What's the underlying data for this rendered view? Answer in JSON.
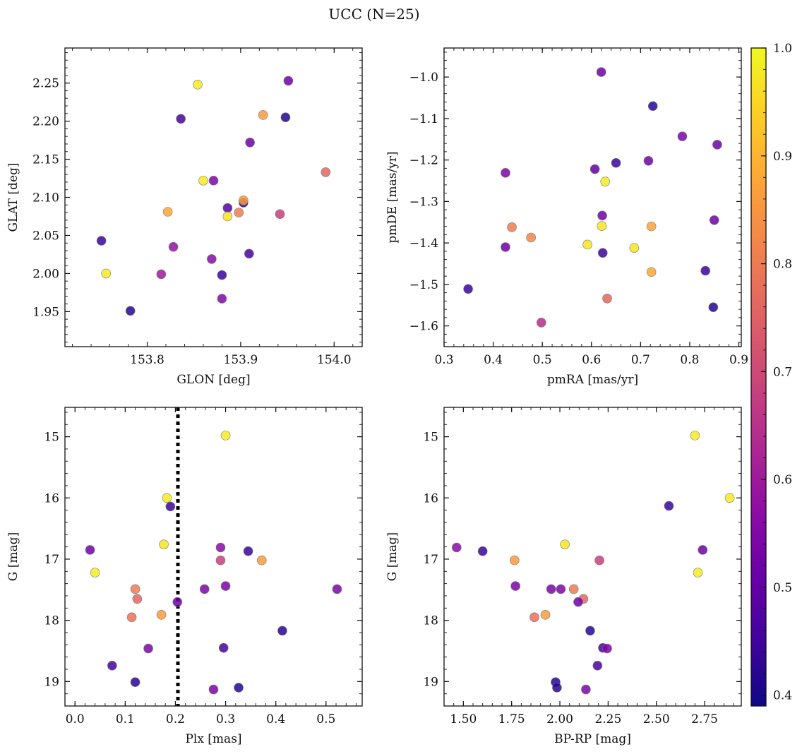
{
  "figure": {
    "title": "UCC (N=25)"
  },
  "chart_data": [
    {
      "type": "scatter",
      "xlabel": "GLON [deg]",
      "ylabel": "GLAT [deg]",
      "xlim": [
        153.712,
        154.03
      ],
      "ylim": [
        1.904,
        2.296
      ],
      "xticks": [
        153.8,
        153.9,
        154.0
      ],
      "xticklabels": [
        "153.8",
        "153.9",
        "154.0"
      ],
      "xminor": 0.02,
      "yticks": [
        1.95,
        2.0,
        2.05,
        2.1,
        2.15,
        2.2,
        2.25
      ],
      "yticklabels": [
        "1.95",
        "2.00",
        "2.05",
        "2.10",
        "2.15",
        "2.20",
        "2.25"
      ],
      "yminor": 0.01,
      "points": [
        {
          "x": 153.854,
          "y": 2.248,
          "c": 0.98
        },
        {
          "x": 153.951,
          "y": 2.253,
          "c": 0.52
        },
        {
          "x": 153.836,
          "y": 2.203,
          "c": 0.46
        },
        {
          "x": 153.924,
          "y": 2.208,
          "c": 0.86
        },
        {
          "x": 153.948,
          "y": 2.205,
          "c": 0.42
        },
        {
          "x": 153.91,
          "y": 2.172,
          "c": 0.52
        },
        {
          "x": 153.991,
          "y": 2.133,
          "c": 0.76
        },
        {
          "x": 153.86,
          "y": 2.122,
          "c": 0.98
        },
        {
          "x": 153.871,
          "y": 2.122,
          "c": 0.54
        },
        {
          "x": 153.822,
          "y": 2.081,
          "c": 0.88
        },
        {
          "x": 153.886,
          "y": 2.086,
          "c": 0.48
        },
        {
          "x": 153.903,
          "y": 2.093,
          "c": 0.42
        },
        {
          "x": 153.903,
          "y": 2.096,
          "c": 0.86
        },
        {
          "x": 153.898,
          "y": 2.08,
          "c": 0.8
        },
        {
          "x": 153.886,
          "y": 2.075,
          "c": 0.97
        },
        {
          "x": 153.942,
          "y": 2.078,
          "c": 0.68
        },
        {
          "x": 153.751,
          "y": 2.043,
          "c": 0.44
        },
        {
          "x": 153.828,
          "y": 2.035,
          "c": 0.58
        },
        {
          "x": 153.869,
          "y": 2.019,
          "c": 0.56
        },
        {
          "x": 153.909,
          "y": 2.026,
          "c": 0.46
        },
        {
          "x": 153.756,
          "y": 2.0,
          "c": 0.98
        },
        {
          "x": 153.815,
          "y": 1.999,
          "c": 0.6
        },
        {
          "x": 153.88,
          "y": 1.998,
          "c": 0.44
        },
        {
          "x": 153.88,
          "y": 1.967,
          "c": 0.55
        },
        {
          "x": 153.782,
          "y": 1.951,
          "c": 0.42
        }
      ]
    },
    {
      "type": "scatter",
      "xlabel": "pmRA [mas/yr]",
      "ylabel": "pmDE [mas/yr]",
      "xlim": [
        0.3,
        0.905
      ],
      "ylim": [
        -1.65,
        -0.93
      ],
      "xticks": [
        0.3,
        0.4,
        0.5,
        0.6,
        0.7,
        0.8,
        0.9
      ],
      "xticklabels": [
        "0.3",
        "0.4",
        "0.5",
        "0.6",
        "0.7",
        "0.8",
        "0.9"
      ],
      "xminor": 0.02,
      "yticks": [
        -1.6,
        -1.5,
        -1.4,
        -1.3,
        -1.2,
        -1.1,
        -1.0
      ],
      "yticklabels": [
        "−1.6",
        "−1.5",
        "−1.4",
        "−1.3",
        "−1.2",
        "−1.1",
        "−1.0"
      ],
      "yminor": 0.02,
      "points": [
        {
          "x": 0.62,
          "y": -0.988,
          "c": 0.52
        },
        {
          "x": 0.725,
          "y": -1.07,
          "c": 0.42
        },
        {
          "x": 0.785,
          "y": -1.143,
          "c": 0.54
        },
        {
          "x": 0.856,
          "y": -1.163,
          "c": 0.52
        },
        {
          "x": 0.716,
          "y": -1.202,
          "c": 0.52
        },
        {
          "x": 0.65,
          "y": -1.207,
          "c": 0.44
        },
        {
          "x": 0.607,
          "y": -1.222,
          "c": 0.5
        },
        {
          "x": 0.425,
          "y": -1.231,
          "c": 0.54
        },
        {
          "x": 0.628,
          "y": -1.252,
          "c": 0.98
        },
        {
          "x": 0.622,
          "y": -1.334,
          "c": 0.52
        },
        {
          "x": 0.85,
          "y": -1.345,
          "c": 0.52
        },
        {
          "x": 0.438,
          "y": -1.362,
          "c": 0.8
        },
        {
          "x": 0.621,
          "y": -1.359,
          "c": 0.97
        },
        {
          "x": 0.722,
          "y": -1.36,
          "c": 0.87
        },
        {
          "x": 0.477,
          "y": -1.387,
          "c": 0.82
        },
        {
          "x": 0.425,
          "y": -1.41,
          "c": 0.52
        },
        {
          "x": 0.592,
          "y": -1.404,
          "c": 0.97
        },
        {
          "x": 0.687,
          "y": -1.412,
          "c": 0.97
        },
        {
          "x": 0.623,
          "y": -1.424,
          "c": 0.44
        },
        {
          "x": 0.722,
          "y": -1.47,
          "c": 0.88
        },
        {
          "x": 0.832,
          "y": -1.467,
          "c": 0.44
        },
        {
          "x": 0.349,
          "y": -1.511,
          "c": 0.44
        },
        {
          "x": 0.632,
          "y": -1.534,
          "c": 0.76
        },
        {
          "x": 0.848,
          "y": -1.555,
          "c": 0.42
        },
        {
          "x": 0.498,
          "y": -1.592,
          "c": 0.64
        }
      ]
    },
    {
      "type": "scatter",
      "xlabel": "Plx [mas]",
      "ylabel": "G [mag]",
      "xlim": [
        -0.02,
        0.572
      ],
      "ylim": [
        19.4,
        14.52
      ],
      "inverted_y": true,
      "xticks": [
        0.0,
        0.1,
        0.2,
        0.3,
        0.4,
        0.5
      ],
      "xticklabels": [
        "0.0",
        "0.1",
        "0.2",
        "0.3",
        "0.4",
        "0.5"
      ],
      "xminor": 0.02,
      "yticks": [
        15,
        16,
        17,
        18,
        19
      ],
      "yticklabels": [
        "15",
        "16",
        "17",
        "18",
        "19"
      ],
      "yminor": 0.2,
      "vline": 0.205,
      "points": [
        {
          "x": 0.3,
          "y": 14.98,
          "c": 0.98
        },
        {
          "x": 0.183,
          "y": 16.0,
          "c": 0.98
        },
        {
          "x": 0.19,
          "y": 16.14,
          "c": 0.44
        },
        {
          "x": 0.177,
          "y": 16.76,
          "c": 0.97
        },
        {
          "x": 0.03,
          "y": 16.85,
          "c": 0.52
        },
        {
          "x": 0.29,
          "y": 16.81,
          "c": 0.56
        },
        {
          "x": 0.345,
          "y": 16.87,
          "c": 0.44
        },
        {
          "x": 0.04,
          "y": 17.22,
          "c": 0.98
        },
        {
          "x": 0.29,
          "y": 17.02,
          "c": 0.68
        },
        {
          "x": 0.372,
          "y": 17.02,
          "c": 0.86
        },
        {
          "x": 0.12,
          "y": 17.49,
          "c": 0.8
        },
        {
          "x": 0.258,
          "y": 17.49,
          "c": 0.54
        },
        {
          "x": 0.3,
          "y": 17.44,
          "c": 0.54
        },
        {
          "x": 0.522,
          "y": 17.49,
          "c": 0.54
        },
        {
          "x": 0.124,
          "y": 17.65,
          "c": 0.76
        },
        {
          "x": 0.204,
          "y": 17.7,
          "c": 0.52
        },
        {
          "x": 0.113,
          "y": 17.95,
          "c": 0.78
        },
        {
          "x": 0.172,
          "y": 17.91,
          "c": 0.86
        },
        {
          "x": 0.413,
          "y": 18.17,
          "c": 0.42
        },
        {
          "x": 0.146,
          "y": 18.46,
          "c": 0.54
        },
        {
          "x": 0.296,
          "y": 18.45,
          "c": 0.46
        },
        {
          "x": 0.074,
          "y": 18.74,
          "c": 0.46
        },
        {
          "x": 0.12,
          "y": 19.01,
          "c": 0.42
        },
        {
          "x": 0.276,
          "y": 19.13,
          "c": 0.54
        },
        {
          "x": 0.326,
          "y": 19.1,
          "c": 0.42
        }
      ]
    },
    {
      "type": "scatter",
      "xlabel": "BP-RP [mag]",
      "ylabel": "G [mag]",
      "xlim": [
        1.4,
        2.94
      ],
      "ylim": [
        19.4,
        14.52
      ],
      "inverted_y": true,
      "xticks": [
        1.5,
        1.75,
        2.0,
        2.25,
        2.5,
        2.75
      ],
      "xticklabels": [
        "1.50",
        "1.75",
        "2.00",
        "2.25",
        "2.50",
        "2.75"
      ],
      "xminor": 0.05,
      "yticks": [
        15,
        16,
        17,
        18,
        19
      ],
      "yticklabels": [
        "15",
        "16",
        "17",
        "18",
        "19"
      ],
      "yminor": 0.2,
      "points": [
        {
          "x": 2.7,
          "y": 14.98,
          "c": 0.98
        },
        {
          "x": 2.88,
          "y": 16.0,
          "c": 0.98
        },
        {
          "x": 2.565,
          "y": 16.13,
          "c": 0.44
        },
        {
          "x": 2.026,
          "y": 16.76,
          "c": 0.97
        },
        {
          "x": 1.465,
          "y": 16.81,
          "c": 0.56
        },
        {
          "x": 1.6,
          "y": 16.87,
          "c": 0.44
        },
        {
          "x": 2.74,
          "y": 16.85,
          "c": 0.52
        },
        {
          "x": 1.765,
          "y": 17.02,
          "c": 0.86
        },
        {
          "x": 2.205,
          "y": 17.02,
          "c": 0.68
        },
        {
          "x": 2.715,
          "y": 17.22,
          "c": 0.98
        },
        {
          "x": 1.77,
          "y": 17.44,
          "c": 0.54
        },
        {
          "x": 1.955,
          "y": 17.49,
          "c": 0.54
        },
        {
          "x": 2.005,
          "y": 17.49,
          "c": 0.54
        },
        {
          "x": 2.072,
          "y": 17.49,
          "c": 0.8
        },
        {
          "x": 2.122,
          "y": 17.65,
          "c": 0.76
        },
        {
          "x": 2.095,
          "y": 17.7,
          "c": 0.52
        },
        {
          "x": 1.868,
          "y": 17.95,
          "c": 0.78
        },
        {
          "x": 1.925,
          "y": 17.91,
          "c": 0.86
        },
        {
          "x": 2.157,
          "y": 18.17,
          "c": 0.42
        },
        {
          "x": 2.223,
          "y": 18.45,
          "c": 0.46
        },
        {
          "x": 2.245,
          "y": 18.46,
          "c": 0.54
        },
        {
          "x": 2.195,
          "y": 18.74,
          "c": 0.46
        },
        {
          "x": 1.978,
          "y": 19.01,
          "c": 0.42
        },
        {
          "x": 1.985,
          "y": 19.1,
          "c": 0.42
        },
        {
          "x": 2.135,
          "y": 19.13,
          "c": 0.54
        }
      ]
    }
  ],
  "colorbar": {
    "colormap": "plasma",
    "range": [
      0.39,
      1.0
    ],
    "ticks": [
      0.4,
      0.5,
      0.6,
      0.7,
      0.8,
      0.9,
      1.0
    ],
    "ticklabels": [
      "0.4",
      "0.5",
      "0.6",
      "0.7",
      "0.8",
      "0.9",
      "1.0"
    ]
  }
}
